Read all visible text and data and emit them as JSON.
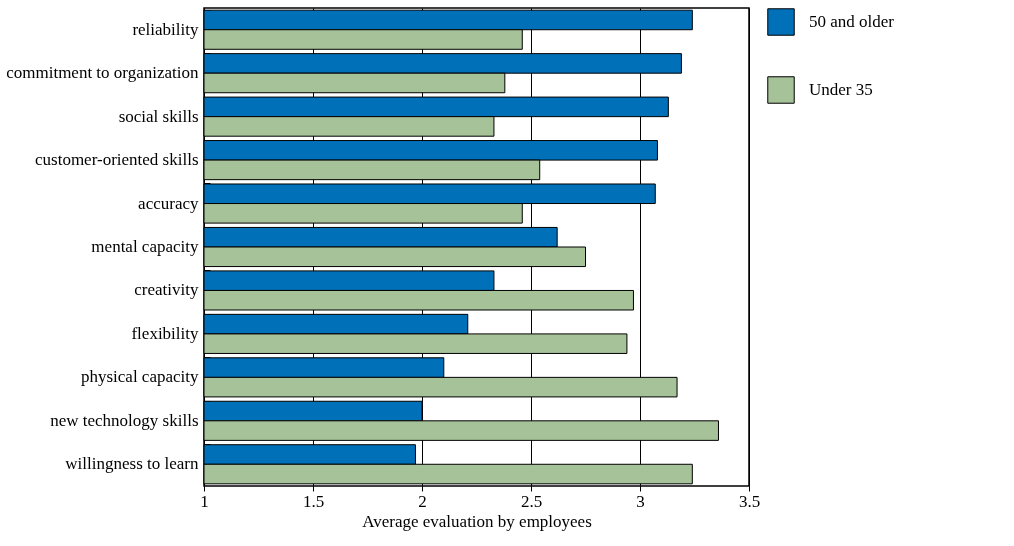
{
  "chart_data": {
    "type": "bar",
    "orientation": "horizontal",
    "xlabel": "Average evaluation by employees",
    "categories": [
      "reliability",
      "commitment to organization",
      "social skills",
      "customer-oriented skills",
      "accuracy",
      "mental capacity",
      "creativity",
      "flexibility",
      "physical capacity",
      "new technology skills",
      "willingness to learn"
    ],
    "series": [
      {
        "name": "50 and older",
        "color": "#0070b8",
        "values": [
          3.24,
          3.19,
          3.13,
          3.08,
          3.07,
          2.62,
          2.33,
          2.21,
          2.1,
          2.0,
          1.97
        ]
      },
      {
        "name": "Under 35",
        "color": "#a6c298",
        "values": [
          2.46,
          2.38,
          2.33,
          2.54,
          2.46,
          2.75,
          2.97,
          2.94,
          3.17,
          3.36,
          3.24
        ]
      }
    ],
    "xlim": [
      1,
      3.5
    ],
    "xticks": [
      1,
      1.5,
      2,
      2.5,
      3,
      3.5
    ],
    "grid": "x",
    "legend": "top right"
  }
}
